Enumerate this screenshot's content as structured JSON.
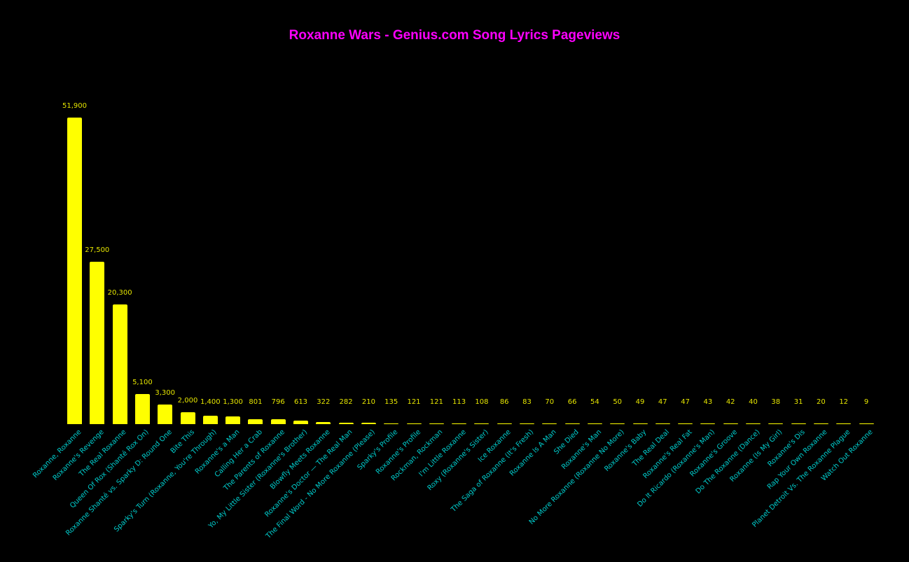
{
  "title": "Roxanne Wars - Genius.com Song Lyrics Pageviews",
  "colors": {
    "background": "#000000",
    "bar": "#ffff00",
    "value_label": "#e6e600",
    "tick_label": "#00cccc",
    "title": "#ff00ff"
  },
  "chart_data": {
    "type": "bar",
    "title": "Roxanne Wars - Genius.com Song Lyrics Pageviews",
    "xlabel": "",
    "ylabel": "",
    "grid": false,
    "legend": null,
    "ylim": [
      0,
      52000
    ],
    "categories": [
      "Roxanne, Roxanne",
      "Roxanne's Revenge",
      "The Real Roxanne",
      "Queen Of Rox (Shanté Rox On)",
      "Roxanne Shanté vs. Sparky D: Round One",
      "Bite This",
      "Sparky's Turn (Roxanne, You're Through)",
      "Roxanne's a Man",
      "Calling Her a Crab",
      "The Parents of Roxanne",
      "Yo, My Little Sister (Roxanne's Brother)",
      "Blowfly Meets Roxanne",
      "Roxanne's Doctor — The Real Man",
      "The Final Word - No More Roxanne (Please)",
      "Sparky's Profile",
      "Roxanne's Profile",
      "Rockman, Rockman",
      "I'm Little Roxanne",
      "Roxy (Roxanne's Sister)",
      "Ice Roxanne",
      "The Saga of Roxanne (It's Fresh)",
      "Roxanne Is A Man",
      "She Died",
      "Roxanne's Man",
      "No More Roxanne (Roxanne No More)",
      "Roxanne's Baby",
      "The Real Deal",
      "Roxanne's Real Fat",
      "Do It Ricardo (Roxanne's Man)",
      "Roxanne's Groove",
      "Do The Roxanne (Dance)",
      "Roxanne (Is My Girl)",
      "Roxanne's Dis",
      "Rap Your Own Roxanne",
      "Planet Detroit Vs. The Roxanne Plague",
      "Watch Out Roxanne"
    ],
    "values": [
      51900,
      27500,
      20300,
      5100,
      3300,
      2000,
      1400,
      1300,
      801,
      796,
      613,
      322,
      282,
      210,
      135,
      121,
      121,
      113,
      108,
      86,
      83,
      70,
      66,
      54,
      50,
      49,
      47,
      47,
      43,
      42,
      40,
      38,
      31,
      20,
      12,
      9
    ],
    "value_labels": [
      "51,900",
      "27,500",
      "20,300",
      "5,100",
      "3,300",
      "2,000",
      "1,400",
      "1,300",
      "801",
      "796",
      "613",
      "322",
      "282",
      "210",
      "135",
      "121",
      "121",
      "113",
      "108",
      "86",
      "83",
      "70",
      "66",
      "54",
      "50",
      "49",
      "47",
      "47",
      "43",
      "42",
      "40",
      "38",
      "31",
      "20",
      "12",
      "9"
    ]
  }
}
